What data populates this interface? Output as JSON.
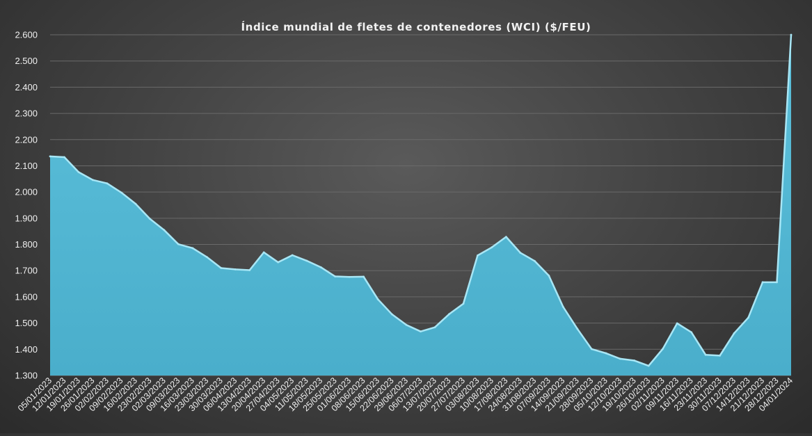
{
  "chart_data": {
    "type": "area",
    "title": "Índice mundial de fletes de contenedores (WCI) ($/FEU)",
    "xlabel": "",
    "ylabel": "",
    "ylim": [
      1300,
      2600
    ],
    "y_ticks": [
      1300,
      1400,
      1500,
      1600,
      1700,
      1800,
      1900,
      2000,
      2100,
      2200,
      2300,
      2400,
      2500,
      2600
    ],
    "y_tick_labels": [
      "1.300",
      "1.400",
      "1.500",
      "1.600",
      "1.700",
      "1.800",
      "1.900",
      "2.000",
      "2.100",
      "2.200",
      "2.300",
      "2.400",
      "2.500",
      "2.600"
    ],
    "grid": true,
    "legend": "none",
    "colors": {
      "area": "#53b8d4",
      "edge": "#a8e6f5",
      "grid": "#6a6a6a",
      "text": "#f0f0f0"
    },
    "x": [
      "05/01/2023",
      "12/01/2023",
      "19/01/2023",
      "26/01/2023",
      "02/02/2023",
      "09/02/2023",
      "16/02/2023",
      "23/02/2023",
      "02/03/2023",
      "09/03/2023",
      "16/03/2023",
      "23/03/2023",
      "30/03/2023",
      "06/04/2023",
      "13/04/2023",
      "20/04/2023",
      "27/04/2023",
      "04/05/2023",
      "11/05/2023",
      "18/05/2023",
      "25/05/2023",
      "01/06/2023",
      "08/06/2023",
      "15/06/2023",
      "22/06/2023",
      "29/06/2023",
      "06/07/2023",
      "13/07/2023",
      "20/07/2023",
      "27/07/2023",
      "03/08/2023",
      "10/08/2023",
      "17/08/2023",
      "24/08/2023",
      "31/08/2023",
      "07/09/2023",
      "14/09/2023",
      "21/09/2023",
      "28/09/2023",
      "05/10/2023",
      "12/10/2023",
      "19/10/2023",
      "26/10/2023",
      "02/11/2023",
      "09/11/2023",
      "16/11/2023",
      "23/11/2023",
      "30/11/2023",
      "07/12/2023",
      "14/12/2023",
      "21/12/2023",
      "28/12/2023",
      "04/01/2024"
    ],
    "values": [
      2136,
      2133,
      2076,
      2046,
      2033,
      1998,
      1955,
      1898,
      1855,
      1801,
      1786,
      1752,
      1710,
      1705,
      1702,
      1770,
      1732,
      1759,
      1738,
      1713,
      1678,
      1676,
      1677,
      1591,
      1533,
      1493,
      1468,
      1484,
      1534,
      1574,
      1758,
      1789,
      1829,
      1768,
      1737,
      1681,
      1562,
      1478,
      1401,
      1385,
      1364,
      1357,
      1337,
      1402,
      1499,
      1465,
      1379,
      1376,
      1461,
      1521,
      1656,
      1656,
      2600
    ]
  }
}
